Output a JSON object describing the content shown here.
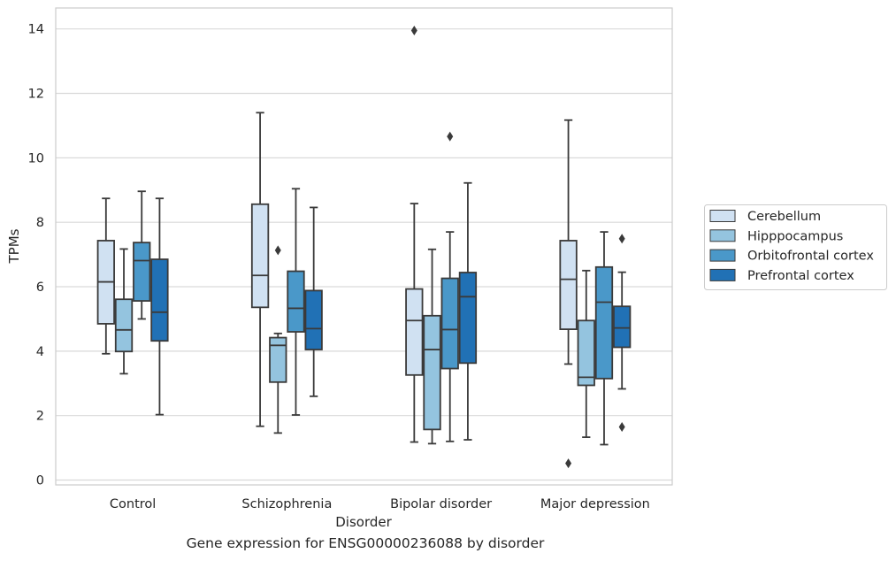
{
  "caption": "Gene expression for ENSG00000236088 by disorder",
  "chart_data": {
    "type": "boxplot",
    "title": "",
    "xlabel": "Disorder",
    "ylabel": "TPMs",
    "categories": [
      "Control",
      "Schizophrenia",
      "Bipolar disorder",
      "Major depression"
    ],
    "ylim": [
      -0.15,
      14.65
    ],
    "yticks": [
      0,
      2,
      4,
      6,
      8,
      10,
      12,
      14
    ],
    "grid": "horizontal",
    "legend_position": "right",
    "series": [
      {
        "name": "Cerebellum",
        "color": "#d0e1f2",
        "boxes": [
          {
            "whisker_low": 3.92,
            "q1": 4.85,
            "median": 6.15,
            "q3": 7.43,
            "whisker_high": 8.74,
            "outliers": []
          },
          {
            "whisker_low": 1.67,
            "q1": 5.36,
            "median": 6.35,
            "q3": 8.56,
            "whisker_high": 11.4,
            "outliers": []
          },
          {
            "whisker_low": 1.18,
            "q1": 3.26,
            "median": 4.95,
            "q3": 5.93,
            "whisker_high": 8.58,
            "outliers": [
              13.95
            ]
          },
          {
            "whisker_low": 3.6,
            "q1": 4.68,
            "median": 6.23,
            "q3": 7.43,
            "whisker_high": 11.17,
            "outliers": [
              0.52
            ]
          }
        ]
      },
      {
        "name": "Hipppocampus",
        "color": "#94c4df",
        "boxes": [
          {
            "whisker_low": 3.3,
            "q1": 3.99,
            "median": 4.66,
            "q3": 5.61,
            "whisker_high": 7.17,
            "outliers": []
          },
          {
            "whisker_low": 1.46,
            "q1": 3.04,
            "median": 4.18,
            "q3": 4.42,
            "whisker_high": 4.55,
            "outliers": [
              7.13
            ]
          },
          {
            "whisker_low": 1.13,
            "q1": 1.57,
            "median": 4.05,
            "q3": 5.1,
            "whisker_high": 7.16,
            "outliers": []
          },
          {
            "whisker_low": 1.33,
            "q1": 2.94,
            "median": 3.19,
            "q3": 4.95,
            "whisker_high": 6.5,
            "outliers": []
          }
        ]
      },
      {
        "name": "Orbitofrontal cortex",
        "color": "#4a98c9",
        "boxes": [
          {
            "whisker_low": 5.0,
            "q1": 5.56,
            "median": 6.81,
            "q3": 7.37,
            "whisker_high": 8.96,
            "outliers": []
          },
          {
            "whisker_low": 2.02,
            "q1": 4.6,
            "median": 5.33,
            "q3": 6.48,
            "whisker_high": 9.04,
            "outliers": []
          },
          {
            "whisker_low": 1.2,
            "q1": 3.46,
            "median": 4.67,
            "q3": 6.26,
            "whisker_high": 7.7,
            "outliers": [
              10.66
            ]
          },
          {
            "whisker_low": 1.1,
            "q1": 3.15,
            "median": 5.52,
            "q3": 6.61,
            "whisker_high": 7.7,
            "outliers": []
          }
        ]
      },
      {
        "name": "Prefrontal cortex",
        "color": "#2171b5",
        "boxes": [
          {
            "whisker_low": 2.03,
            "q1": 4.32,
            "median": 5.21,
            "q3": 6.85,
            "whisker_high": 8.74,
            "outliers": []
          },
          {
            "whisker_low": 2.6,
            "q1": 4.05,
            "median": 4.7,
            "q3": 5.88,
            "whisker_high": 8.46,
            "outliers": []
          },
          {
            "whisker_low": 1.25,
            "q1": 3.63,
            "median": 5.69,
            "q3": 6.44,
            "whisker_high": 9.22,
            "outliers": []
          },
          {
            "whisker_low": 2.83,
            "q1": 4.12,
            "median": 4.72,
            "q3": 5.39,
            "whisker_high": 6.45,
            "outliers": [
              7.49,
              1.65
            ]
          }
        ]
      }
    ]
  }
}
